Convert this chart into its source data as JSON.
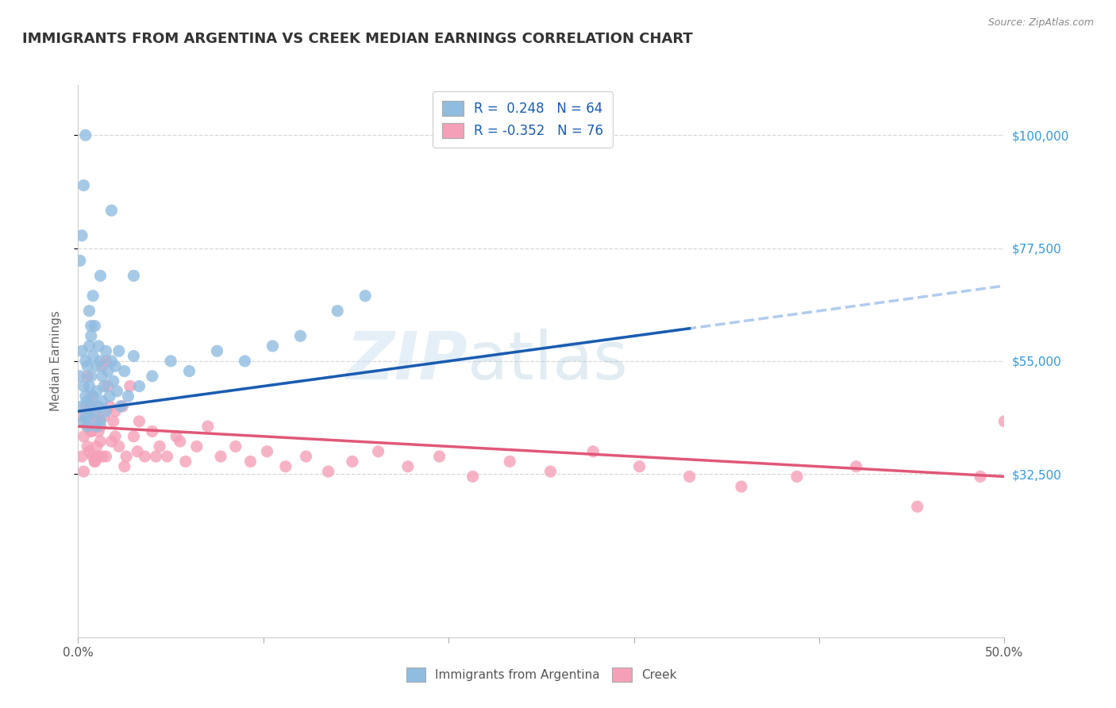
{
  "title": "IMMIGRANTS FROM ARGENTINA VS CREEK MEDIAN EARNINGS CORRELATION CHART",
  "source": "Source: ZipAtlas.com",
  "ylabel": "Median Earnings",
  "xlim": [
    0.0,
    0.5
  ],
  "ylim": [
    0,
    110000
  ],
  "xticks": [
    0.0,
    0.1,
    0.2,
    0.3,
    0.4,
    0.5
  ],
  "xticklabels": [
    "0.0%",
    "",
    "",
    "",
    "",
    "50.0%"
  ],
  "ytick_labels": [
    "$32,500",
    "$55,000",
    "$77,500",
    "$100,000"
  ],
  "ytick_values": [
    32500,
    55000,
    77500,
    100000
  ],
  "watermark_zip": "ZIP",
  "watermark_atlas": "atlas",
  "legend_line1": "R =  0.248   N = 64",
  "legend_line2": "R = -0.352   N = 76",
  "blue_color": "#90bce0",
  "pink_color": "#f5a0b8",
  "blue_line_color": "#1a5cb0",
  "pink_line_color": "#e05878",
  "dashed_line_color": "#b0ccee",
  "grid_color": "#d8d8d8",
  "title_color": "#333333",
  "axis_label_color": "#666666",
  "right_label_color": "#3399dd",
  "source_color": "#888888",
  "background_color": "#ffffff",
  "blue_scatter_x": [
    0.001,
    0.002,
    0.002,
    0.003,
    0.003,
    0.004,
    0.004,
    0.004,
    0.005,
    0.005,
    0.005,
    0.006,
    0.006,
    0.006,
    0.007,
    0.007,
    0.007,
    0.008,
    0.008,
    0.009,
    0.009,
    0.01,
    0.01,
    0.01,
    0.011,
    0.011,
    0.012,
    0.012,
    0.013,
    0.013,
    0.014,
    0.015,
    0.015,
    0.016,
    0.017,
    0.018,
    0.019,
    0.02,
    0.021,
    0.022,
    0.023,
    0.025,
    0.027,
    0.03,
    0.033,
    0.04,
    0.05,
    0.06,
    0.075,
    0.09,
    0.105,
    0.12,
    0.14,
    0.155,
    0.03,
    0.018,
    0.012,
    0.008,
    0.006,
    0.004,
    0.003,
    0.002,
    0.001,
    0.007
  ],
  "blue_scatter_y": [
    52000,
    57000,
    46000,
    50000,
    43000,
    55000,
    48000,
    44000,
    54000,
    47000,
    42000,
    58000,
    50000,
    44000,
    60000,
    52000,
    46000,
    56000,
    48000,
    62000,
    45000,
    54000,
    49000,
    42000,
    58000,
    46000,
    55000,
    43000,
    52000,
    47000,
    50000,
    57000,
    45000,
    53000,
    48000,
    55000,
    51000,
    54000,
    49000,
    57000,
    46000,
    53000,
    48000,
    56000,
    50000,
    52000,
    55000,
    53000,
    57000,
    55000,
    58000,
    60000,
    65000,
    68000,
    72000,
    85000,
    72000,
    68000,
    65000,
    100000,
    90000,
    80000,
    75000,
    62000
  ],
  "pink_scatter_x": [
    0.002,
    0.003,
    0.004,
    0.005,
    0.005,
    0.006,
    0.006,
    0.007,
    0.007,
    0.008,
    0.008,
    0.009,
    0.009,
    0.01,
    0.01,
    0.011,
    0.011,
    0.012,
    0.013,
    0.013,
    0.014,
    0.015,
    0.016,
    0.017,
    0.018,
    0.019,
    0.02,
    0.022,
    0.024,
    0.026,
    0.028,
    0.03,
    0.033,
    0.036,
    0.04,
    0.044,
    0.048,
    0.053,
    0.058,
    0.064,
    0.07,
    0.077,
    0.085,
    0.093,
    0.102,
    0.112,
    0.123,
    0.135,
    0.148,
    0.162,
    0.178,
    0.195,
    0.213,
    0.233,
    0.255,
    0.278,
    0.303,
    0.33,
    0.358,
    0.388,
    0.42,
    0.453,
    0.487,
    0.5,
    0.002,
    0.003,
    0.005,
    0.007,
    0.009,
    0.012,
    0.015,
    0.02,
    0.025,
    0.032,
    0.042,
    0.055
  ],
  "pink_scatter_y": [
    44000,
    40000,
    46000,
    42000,
    52000,
    45000,
    37000,
    48000,
    41000,
    46000,
    36000,
    43000,
    35000,
    44000,
    38000,
    41000,
    36000,
    42000,
    54000,
    36000,
    44000,
    55000,
    50000,
    46000,
    39000,
    43000,
    45000,
    38000,
    46000,
    36000,
    50000,
    40000,
    43000,
    36000,
    41000,
    38000,
    36000,
    40000,
    35000,
    38000,
    42000,
    36000,
    38000,
    35000,
    37000,
    34000,
    36000,
    33000,
    35000,
    37000,
    34000,
    36000,
    32000,
    35000,
    33000,
    37000,
    34000,
    32000,
    30000,
    32000,
    34000,
    26000,
    32000,
    43000,
    36000,
    33000,
    38000,
    41000,
    35000,
    39000,
    36000,
    40000,
    34000,
    37000,
    36000,
    39000
  ]
}
